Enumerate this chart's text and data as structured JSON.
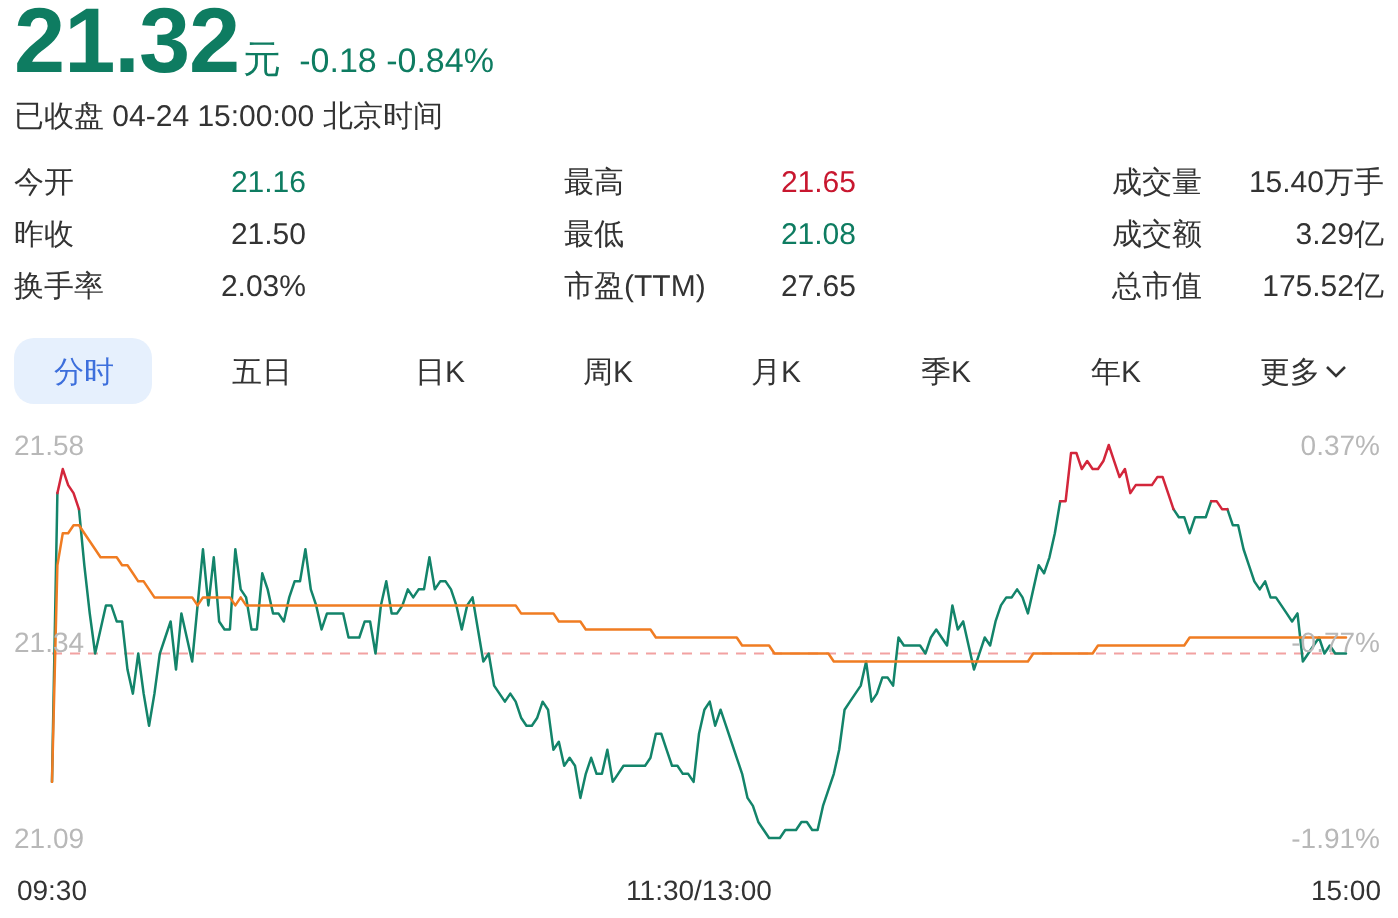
{
  "chart_data": {
    "type": "line",
    "title": "21.32元",
    "subtitle": "-0.18 -0.84%",
    "annotations": [
      "已收盘 04-24 15:00:00 北京时间",
      "今开",
      "21.16",
      "最高",
      "21.65",
      "成交量",
      "15.40万手",
      "昨收",
      "21.50",
      "最低",
      "21.08",
      "成交额",
      "3.29亿",
      "换手率",
      "2.03%",
      "市盈(TTM)",
      "27.65",
      "总市值",
      "175.52亿",
      "分时",
      "五日",
      "日K",
      "周K",
      "月K",
      "季K",
      "年K",
      "更多"
    ],
    "categories": [
      "09:30",
      null,
      null,
      null,
      null,
      null,
      null,
      null,
      null,
      null,
      null,
      null,
      null,
      null,
      null,
      null,
      null,
      null,
      null,
      null,
      null,
      null,
      null,
      null,
      null,
      null,
      null,
      null,
      null,
      null,
      null,
      null,
      null,
      null,
      null,
      null,
      null,
      null,
      null,
      null,
      null,
      null,
      null,
      null,
      null,
      null,
      null,
      null,
      null,
      null,
      null,
      null,
      null,
      null,
      null,
      null,
      null,
      null,
      null,
      null,
      null,
      null,
      null,
      null,
      null,
      null,
      null,
      null,
      null,
      null,
      null,
      null,
      null,
      null,
      null,
      null,
      null,
      null,
      null,
      null,
      null,
      null,
      null,
      null,
      null,
      null,
      null,
      null,
      null,
      null,
      null,
      null,
      null,
      null,
      null,
      null,
      null,
      null,
      null,
      null,
      null,
      null,
      null,
      null,
      null,
      null,
      null,
      null,
      null,
      null,
      null,
      null,
      null,
      null,
      null,
      null,
      null,
      null,
      null,
      null,
      "11:30/13:00",
      null,
      null,
      null,
      null,
      null,
      null,
      null,
      null,
      null,
      null,
      null,
      null,
      null,
      null,
      null,
      null,
      null,
      null,
      null,
      null,
      null,
      null,
      null,
      null,
      null,
      null,
      null,
      null,
      null,
      null,
      null,
      null,
      null,
      null,
      null,
      null,
      null,
      null,
      null,
      null,
      null,
      null,
      null,
      null,
      null,
      null,
      null,
      null,
      null,
      null,
      null,
      null,
      null,
      null,
      null,
      null,
      null,
      null,
      null,
      null,
      null,
      null,
      null,
      null,
      null,
      null,
      null,
      null,
      null,
      null,
      null,
      null,
      null,
      null,
      null,
      null,
      null,
      null,
      null,
      null,
      null,
      null,
      null,
      null,
      null,
      null,
      null,
      null,
      null,
      null,
      null,
      null,
      null,
      null,
      null,
      null,
      null,
      null,
      null,
      null,
      null,
      null,
      null,
      null,
      null,
      null,
      null,
      null,
      null,
      null,
      null,
      null,
      null,
      null,
      null,
      null,
      null,
      null,
      null,
      "15:00"
    ],
    "series": [
      {
        "color": "#13846a",
        "values": [
          21.16,
          21.52,
          null,
          null,
          null,
          21.5,
          21.43,
          21.37,
          21.32,
          21.35,
          21.38,
          21.38,
          21.36,
          21.36,
          21.3,
          21.27,
          21.32,
          21.27,
          21.23,
          21.27,
          21.32,
          21.34,
          21.36,
          21.3,
          21.37,
          21.34,
          21.31,
          21.38,
          21.45,
          21.38,
          21.44,
          21.36,
          21.35,
          21.35,
          21.45,
          21.4,
          21.39,
          21.35,
          21.35,
          21.42,
          21.4,
          21.37,
          21.37,
          21.36,
          21.39,
          21.41,
          21.41,
          21.45,
          21.4,
          21.38,
          21.35,
          21.37,
          21.37,
          21.37,
          21.37,
          21.34,
          21.34,
          21.34,
          21.36,
          21.36,
          21.32,
          21.38,
          21.41,
          21.37,
          21.37,
          21.38,
          21.4,
          21.39,
          21.4,
          21.4,
          21.44,
          21.4,
          21.41,
          21.41,
          21.4,
          21.38,
          21.35,
          21.38,
          21.39,
          21.35,
          21.31,
          21.32,
          21.28,
          21.27,
          21.26,
          21.27,
          21.26,
          21.24,
          21.23,
          21.23,
          21.24,
          21.26,
          21.25,
          21.2,
          21.21,
          21.18,
          21.19,
          21.18,
          21.14,
          21.17,
          21.19,
          21.17,
          21.17,
          21.2,
          21.16,
          21.17,
          21.18,
          21.18,
          21.18,
          21.18,
          21.18,
          21.19,
          21.22,
          21.22,
          21.2,
          21.18,
          21.18,
          21.17,
          21.17,
          21.16,
          21.22,
          21.25,
          21.26,
          21.23,
          21.25,
          21.23,
          21.21,
          21.19,
          21.17,
          21.14,
          21.13,
          21.11,
          21.1,
          21.09,
          21.09,
          21.09,
          21.1,
          21.1,
          21.1,
          21.11,
          21.11,
          21.1,
          21.1,
          21.13,
          21.15,
          21.17,
          21.2,
          21.25,
          21.26,
          21.27,
          21.28,
          21.31,
          21.26,
          21.27,
          21.29,
          21.29,
          21.28,
          21.34,
          21.33,
          21.33,
          21.33,
          21.33,
          21.32,
          21.34,
          21.35,
          21.34,
          21.33,
          21.38,
          21.35,
          21.36,
          21.33,
          21.3,
          21.32,
          21.34,
          21.33,
          21.36,
          21.38,
          21.39,
          21.39,
          21.4,
          21.39,
          21.37,
          21.4,
          21.43,
          21.42,
          21.44,
          21.47,
          21.51,
          null,
          null,
          null,
          null,
          null,
          null,
          null,
          null,
          null,
          null,
          null,
          null,
          null,
          null,
          null,
          null,
          null,
          null,
          null,
          null,
          21.5,
          21.49,
          21.49,
          21.47,
          21.49,
          21.49,
          21.49,
          21.51,
          null,
          null,
          21.5,
          21.48,
          21.48,
          21.45,
          21.43,
          21.41,
          21.4,
          21.41,
          21.39,
          21.39,
          21.38,
          21.37,
          21.36,
          21.37,
          21.31,
          21.32,
          21.33,
          21.34,
          21.32,
          21.33,
          21.32,
          21.32,
          21.32
        ]
      },
      {
        "color": "#d3263b",
        "values": [
          null,
          21.52,
          21.55,
          21.53,
          21.52,
          21.5,
          null,
          null,
          null,
          null,
          null,
          null,
          null,
          null,
          null,
          null,
          null,
          null,
          null,
          null,
          null,
          null,
          null,
          null,
          null,
          null,
          null,
          null,
          null,
          null,
          null,
          null,
          null,
          null,
          null,
          null,
          null,
          null,
          null,
          null,
          null,
          null,
          null,
          null,
          null,
          null,
          null,
          null,
          null,
          null,
          null,
          null,
          null,
          null,
          null,
          null,
          null,
          null,
          null,
          null,
          null,
          null,
          null,
          null,
          null,
          null,
          null,
          null,
          null,
          null,
          null,
          null,
          null,
          null,
          null,
          null,
          null,
          null,
          null,
          null,
          null,
          null,
          null,
          null,
          null,
          null,
          null,
          null,
          null,
          null,
          null,
          null,
          null,
          null,
          null,
          null,
          null,
          null,
          null,
          null,
          null,
          null,
          null,
          null,
          null,
          null,
          null,
          null,
          null,
          null,
          null,
          null,
          null,
          null,
          null,
          null,
          null,
          null,
          null,
          null,
          null,
          null,
          null,
          null,
          null,
          null,
          null,
          null,
          null,
          null,
          null,
          null,
          null,
          null,
          null,
          null,
          null,
          null,
          null,
          null,
          null,
          null,
          null,
          null,
          null,
          null,
          null,
          null,
          null,
          null,
          null,
          null,
          null,
          null,
          null,
          null,
          null,
          null,
          null,
          null,
          null,
          null,
          null,
          null,
          null,
          null,
          null,
          null,
          null,
          null,
          null,
          null,
          null,
          null,
          null,
          null,
          null,
          null,
          null,
          null,
          null,
          null,
          null,
          null,
          null,
          null,
          null,
          21.51,
          21.51,
          21.57,
          21.57,
          21.55,
          21.56,
          21.55,
          21.55,
          21.56,
          21.58,
          21.56,
          21.54,
          21.55,
          21.52,
          21.53,
          21.53,
          21.53,
          21.53,
          21.54,
          21.54,
          21.52,
          21.5,
          null,
          null,
          null,
          null,
          null,
          null,
          21.51,
          21.51,
          21.5,
          21.5,
          null,
          null,
          null,
          null,
          null,
          null,
          null,
          null,
          null,
          null,
          null,
          null,
          null,
          null,
          null,
          null,
          null,
          null,
          null,
          null,
          null,
          null
        ]
      },
      {
        "color": "#f07c22",
        "values": [
          21.16,
          21.43,
          21.47,
          21.47,
          21.48,
          21.48,
          21.47,
          21.46,
          21.45,
          21.44,
          21.44,
          21.44,
          21.44,
          21.43,
          21.43,
          21.42,
          21.41,
          21.41,
          21.4,
          21.39,
          21.39,
          21.39,
          21.39,
          21.39,
          21.39,
          21.39,
          21.39,
          21.38,
          21.39,
          21.39,
          21.39,
          21.39,
          21.39,
          21.39,
          21.38,
          21.39,
          21.38,
          21.38,
          21.38,
          21.38,
          21.38,
          21.38,
          21.38,
          21.38,
          21.38,
          21.38,
          21.38,
          21.38,
          21.38,
          21.38,
          21.38,
          21.38,
          21.38,
          21.38,
          21.38,
          21.38,
          21.38,
          21.38,
          21.38,
          21.38,
          21.38,
          21.38,
          21.38,
          21.38,
          21.38,
          21.38,
          21.38,
          21.38,
          21.38,
          21.38,
          21.38,
          21.38,
          21.38,
          21.38,
          21.38,
          21.38,
          21.38,
          21.38,
          21.38,
          21.38,
          21.38,
          21.38,
          21.38,
          21.38,
          21.38,
          21.38,
          21.38,
          21.37,
          21.37,
          21.37,
          21.37,
          21.37,
          21.37,
          21.37,
          21.36,
          21.36,
          21.36,
          21.36,
          21.36,
          21.35,
          21.35,
          21.35,
          21.35,
          21.35,
          21.35,
          21.35,
          21.35,
          21.35,
          21.35,
          21.35,
          21.35,
          21.35,
          21.34,
          21.34,
          21.34,
          21.34,
          21.34,
          21.34,
          21.34,
          21.34,
          21.34,
          21.34,
          21.34,
          21.34,
          21.34,
          21.34,
          21.34,
          21.34,
          21.33,
          21.33,
          21.33,
          21.33,
          21.33,
          21.33,
          21.32,
          21.32,
          21.32,
          21.32,
          21.32,
          21.32,
          21.32,
          21.32,
          21.32,
          21.32,
          21.32,
          21.31,
          21.31,
          21.31,
          21.31,
          21.31,
          21.31,
          21.31,
          21.31,
          21.31,
          21.31,
          21.31,
          21.31,
          21.31,
          21.31,
          21.31,
          21.31,
          21.31,
          21.31,
          21.31,
          21.31,
          21.31,
          21.31,
          21.31,
          21.31,
          21.31,
          21.31,
          21.31,
          21.31,
          21.31,
          21.31,
          21.31,
          21.31,
          21.31,
          21.31,
          21.31,
          21.31,
          21.31,
          21.32,
          21.32,
          21.32,
          21.32,
          21.32,
          21.32,
          21.32,
          21.32,
          21.32,
          21.32,
          21.32,
          21.32,
          21.33,
          21.33,
          21.33,
          21.33,
          21.33,
          21.33,
          21.33,
          21.33,
          21.33,
          21.33,
          21.33,
          21.33,
          21.33,
          21.33,
          21.33,
          21.33,
          21.33,
          21.34,
          21.34,
          21.34,
          21.34,
          21.34,
          21.34,
          21.34,
          21.34,
          21.34,
          21.34,
          21.34,
          21.34,
          21.34,
          21.34,
          21.34,
          21.34,
          21.34,
          21.34,
          21.34,
          21.34,
          21.34,
          21.34,
          21.34,
          21.34,
          21.34,
          21.34,
          21.34,
          21.34,
          21.34,
          21.34
        ]
      }
    ],
    "ylim": [
      21.09,
      21.58
    ],
    "yticks": [
      21.09,
      {
        "value": 21.335,
        "label": "21.34"
      },
      21.58
    ],
    "y2lim": [
      -1.91,
      0.37
    ],
    "y2ticks": [
      {
        "value": -1.91,
        "label": "-1.91%"
      },
      {
        "value": -0.77,
        "label": "-0.77%"
      },
      {
        "value": 0.37,
        "label": "0.37%"
      }
    ],
    "ref_lines": [
      {
        "axis": "y",
        "value": 21.32,
        "color": "#f2a2a2",
        "line_style": "dashed"
      }
    ]
  }
}
